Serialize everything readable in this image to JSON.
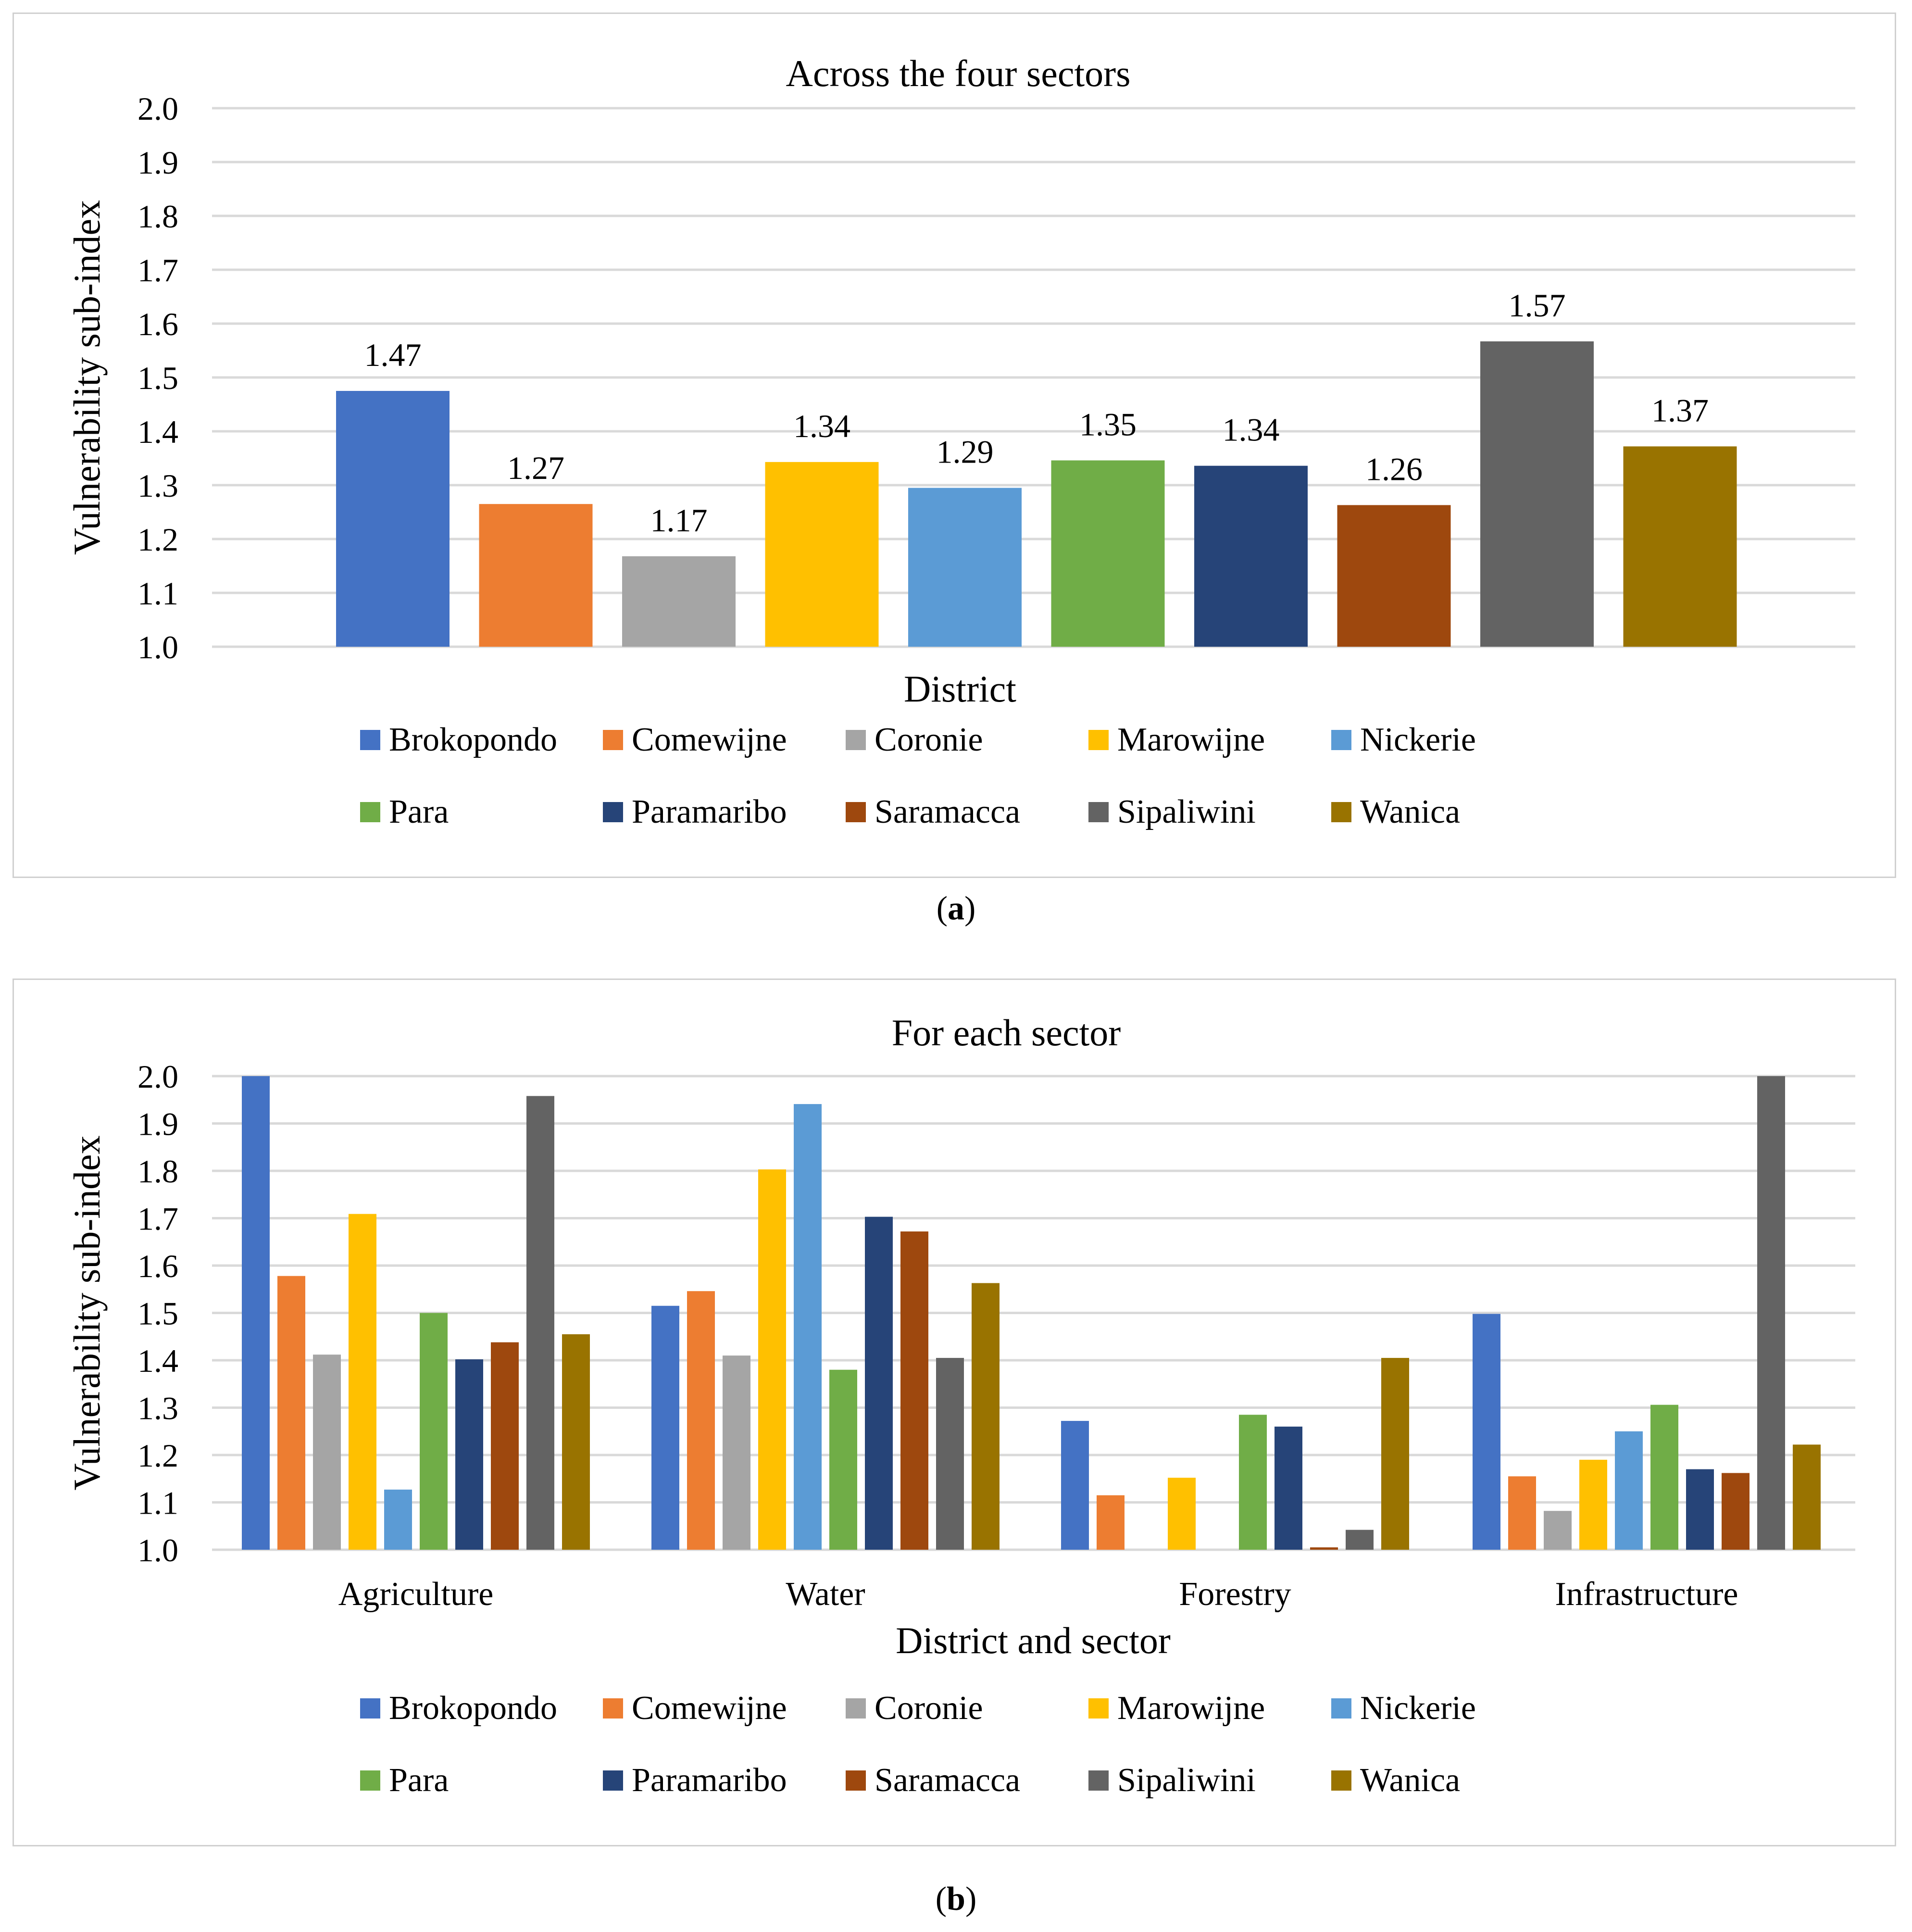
{
  "colors": {
    "Brokopondo": "#4472C4",
    "Comewijne": "#ED7D31",
    "Coronie": "#A5A5A5",
    "Marowijne": "#FFC000",
    "Nickerie": "#5B9BD5",
    "Para": "#70AD47",
    "Paramaribo": "#264478",
    "Saramacca": "#9E480E",
    "Sipaliwini": "#636363",
    "Wanica": "#997300",
    "grid": "#d9d9d9"
  },
  "legend": [
    "Brokopondo",
    "Comewijne",
    "Coronie",
    "Marowijne",
    "Nickerie",
    "Para",
    "Paramaribo",
    "Saramacca",
    "Sipaliwini",
    "Wanica"
  ],
  "captions": {
    "a": "a",
    "b": "b"
  },
  "chart_data": [
    {
      "type": "bar",
      "title": "Across the four sectors",
      "xlabel": "District",
      "ylabel": "Vulnerability sub-index",
      "ylim": [
        1.0,
        2.0
      ],
      "yticks": [
        "1.0",
        "1.1",
        "1.2",
        "1.3",
        "1.4",
        "1.5",
        "1.6",
        "1.7",
        "1.8",
        "1.9",
        "2.0"
      ],
      "grid": true,
      "legend_position": "bottom",
      "categories": [
        "Brokopondo",
        "Comewijne",
        "Coronie",
        "Marowijne",
        "Nickerie",
        "Para",
        "Paramaribo",
        "Saramacca",
        "Sipaliwini",
        "Wanica"
      ],
      "values": [
        1.475,
        1.265,
        1.168,
        1.343,
        1.295,
        1.346,
        1.336,
        1.263,
        1.567,
        1.372
      ],
      "data_labels": [
        "1.47",
        "1.27",
        "1.17",
        "1.34",
        "1.29",
        "1.35",
        "1.34",
        "1.26",
        "1.57",
        "1.37"
      ]
    },
    {
      "type": "bar",
      "title": "For each sector",
      "xlabel": "District and sector",
      "ylabel": "Vulnerability sub-index",
      "ylim": [
        1.0,
        2.0
      ],
      "yticks": [
        "1.0",
        "1.1",
        "1.2",
        "1.3",
        "1.4",
        "1.5",
        "1.6",
        "1.7",
        "1.8",
        "1.9",
        "2.0"
      ],
      "grid": true,
      "legend_position": "bottom",
      "categories": [
        "Agriculture",
        "Water",
        "Forestry",
        "Infrastructure"
      ],
      "series": [
        {
          "name": "Brokopondo",
          "values": [
            2.0,
            1.515,
            1.272,
            1.498
          ]
        },
        {
          "name": "Comewijne",
          "values": [
            1.578,
            1.546,
            1.115,
            1.155
          ]
        },
        {
          "name": "Coronie",
          "values": [
            1.412,
            1.41,
            1.0,
            1.082
          ]
        },
        {
          "name": "Marowijne",
          "values": [
            1.709,
            1.803,
            1.152,
            1.19
          ]
        },
        {
          "name": "Nickerie",
          "values": [
            1.127,
            1.941,
            1.0,
            1.25
          ]
        },
        {
          "name": "Para",
          "values": [
            1.5,
            1.38,
            1.285,
            1.306
          ]
        },
        {
          "name": "Paramaribo",
          "values": [
            1.402,
            1.703,
            1.26,
            1.17
          ]
        },
        {
          "name": "Saramacca",
          "values": [
            1.438,
            1.672,
            1.005,
            1.162
          ]
        },
        {
          "name": "Sipaliwini",
          "values": [
            1.958,
            1.405,
            1.042,
            2.0
          ]
        },
        {
          "name": "Wanica",
          "values": [
            1.455,
            1.563,
            1.405,
            1.222
          ]
        }
      ]
    }
  ]
}
